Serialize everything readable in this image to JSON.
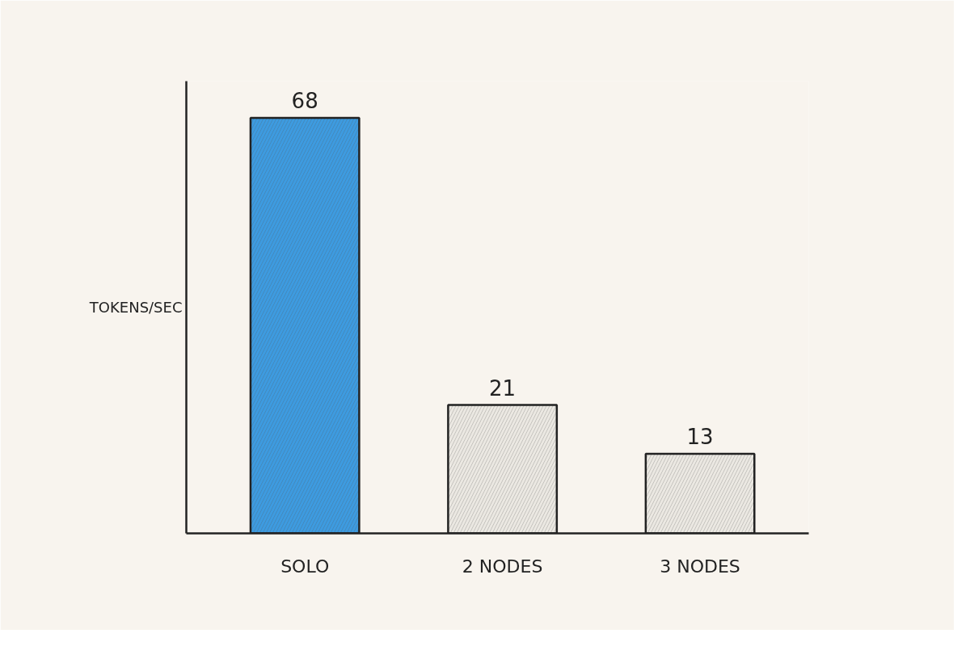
{
  "chart_data": {
    "type": "bar",
    "ylabel": "TOKENS/SEC",
    "categories": [
      "SOLO",
      "2 NODES",
      "3 NODES"
    ],
    "values": [
      68,
      21,
      13
    ],
    "colors": [
      "#3d9be0",
      "#ebe8e2",
      "#ebe8e2"
    ],
    "ylim": [
      0,
      74
    ],
    "tick_labels": "x",
    "data_labels": true,
    "grid": false
  }
}
